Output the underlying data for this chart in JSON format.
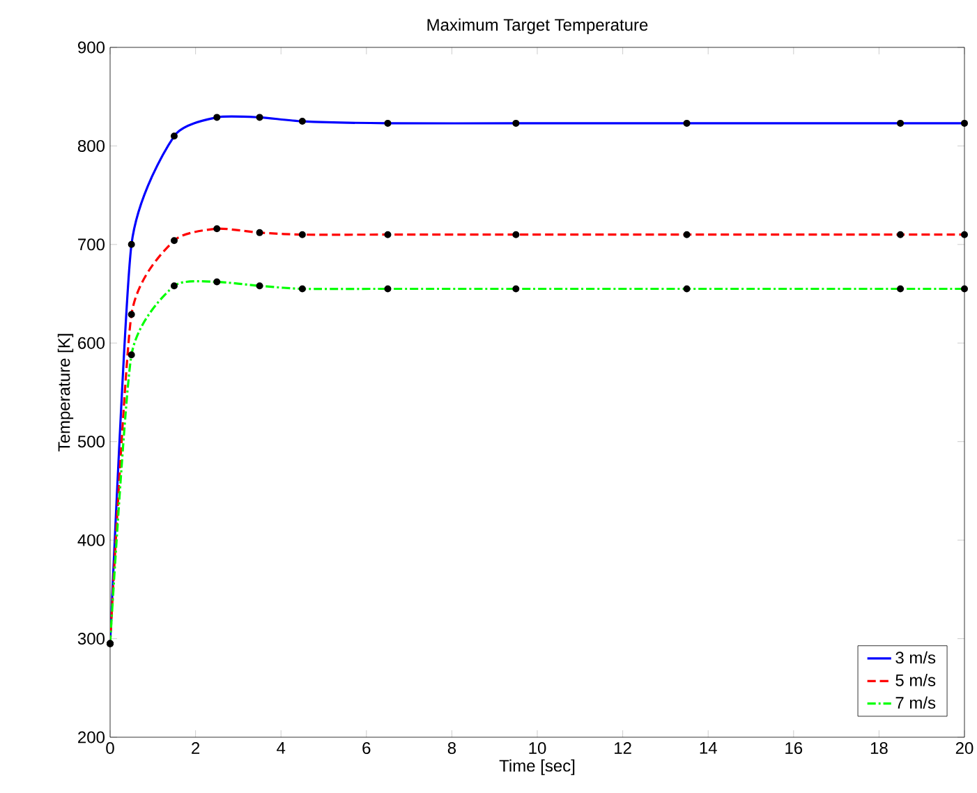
{
  "chart_data": {
    "type": "line",
    "title": "Maximum Target Temperature",
    "xlabel": "Time [sec]",
    "ylabel": "Temperature [K]",
    "x": [
      0,
      0.5,
      1.5,
      2.5,
      3.5,
      4.5,
      6.5,
      9.5,
      13.5,
      18.5,
      20
    ],
    "series": [
      {
        "name": "3 m/s",
        "color": "#0000ff",
        "line_style": "solid",
        "values": [
          295,
          700,
          810,
          829,
          829,
          825,
          823,
          823,
          823,
          823,
          823
        ]
      },
      {
        "name": "5 m/s",
        "color": "#ff0000",
        "line_style": "dashed",
        "values": [
          295,
          629,
          704,
          716,
          712,
          710,
          710,
          710,
          710,
          710,
          710
        ]
      },
      {
        "name": "7 m/s",
        "color": "#00ff00",
        "line_style": "dashdot",
        "values": [
          295,
          588,
          658,
          662,
          658,
          655,
          655,
          655,
          655,
          655,
          655
        ]
      }
    ],
    "marker": "circle",
    "xlim": [
      0,
      20
    ],
    "xticks": [
      0,
      2,
      4,
      6,
      8,
      10,
      12,
      14,
      16,
      18,
      20
    ],
    "ylim": [
      200,
      900
    ],
    "yticks": [
      200,
      300,
      400,
      500,
      600,
      700,
      800,
      900
    ],
    "grid": false,
    "legend": "bottom right"
  }
}
